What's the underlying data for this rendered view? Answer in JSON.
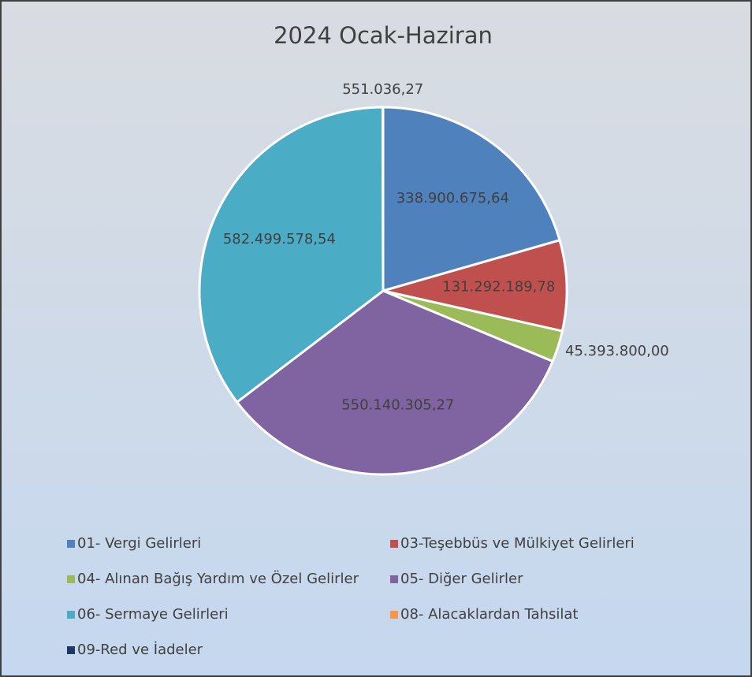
{
  "chart_data": {
    "type": "pie",
    "title": "2024 Ocak-Haziran",
    "categories": [
      "01- Vergi Gelirleri",
      "03-Teşebbüs ve Mülkiyet Gelirleri",
      "04- Alınan Bağış Yardım ve Özel Gelirler",
      "05- Diğer Gelirler",
      "06- Sermaye Gelirleri",
      "08- Alacaklardan Tahsilat",
      "09-Red ve İadeler"
    ],
    "values": [
      338900675.64,
      131292189.78,
      45393800.0,
      550140305.27,
      582499578.54,
      551036.27,
      0
    ],
    "value_labels": [
      "338.900.675,64",
      "131.292.189,78",
      "45.393.800,00",
      "550.140.305,27",
      "582.499.578,54",
      "551.036,27",
      null
    ],
    "colors": [
      "#4f81bd",
      "#c0504d",
      "#9bbb59",
      "#8064a2",
      "#4bacc6",
      "#f79646",
      "#1f3864"
    ],
    "legend": "bottom"
  }
}
